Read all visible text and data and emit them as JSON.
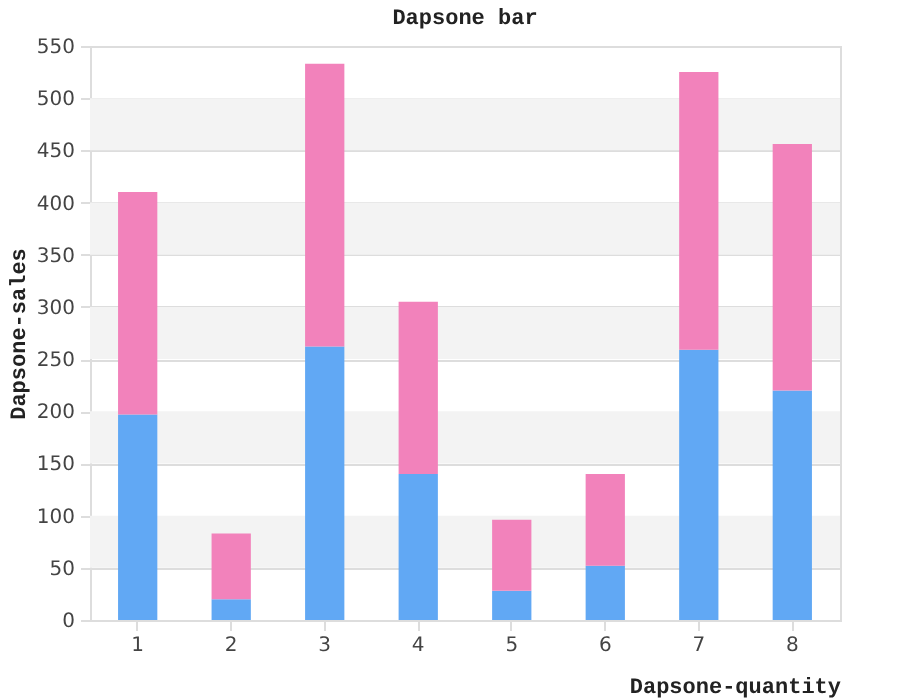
{
  "chart_data": {
    "type": "bar",
    "title": "Dapsone bar",
    "xlabel": "Dapsone-quantity",
    "ylabel": "Dapsone-sales",
    "categories": [
      "1",
      "2",
      "3",
      "4",
      "5",
      "6",
      "7",
      "8"
    ],
    "stacked": true,
    "series": [
      {
        "color": "#61a8f4",
        "values": [
          197,
          20,
          262,
          140,
          28,
          52,
          259,
          220
        ]
      },
      {
        "color": "#f282bb",
        "values": [
          213,
          63,
          271,
          165,
          68,
          88,
          266,
          236
        ]
      }
    ],
    "ylim": [
      0,
      550
    ],
    "yticks": [
      0,
      50,
      100,
      150,
      200,
      250,
      300,
      350,
      400,
      450,
      500,
      550
    ],
    "bands": [
      {
        "axis": "y",
        "from": 50,
        "to": 100,
        "color": "#f3f3f3"
      },
      {
        "axis": "y",
        "from": 150,
        "to": 200,
        "color": "#f3f3f3"
      },
      {
        "axis": "y",
        "from": 250,
        "to": 300,
        "color": "#f3f3f3"
      },
      {
        "axis": "y",
        "from": 350,
        "to": 400,
        "color": "#f3f3f3"
      },
      {
        "axis": "y",
        "from": 450,
        "to": 500,
        "color": "#f3f3f3"
      }
    ],
    "grid": "y"
  }
}
